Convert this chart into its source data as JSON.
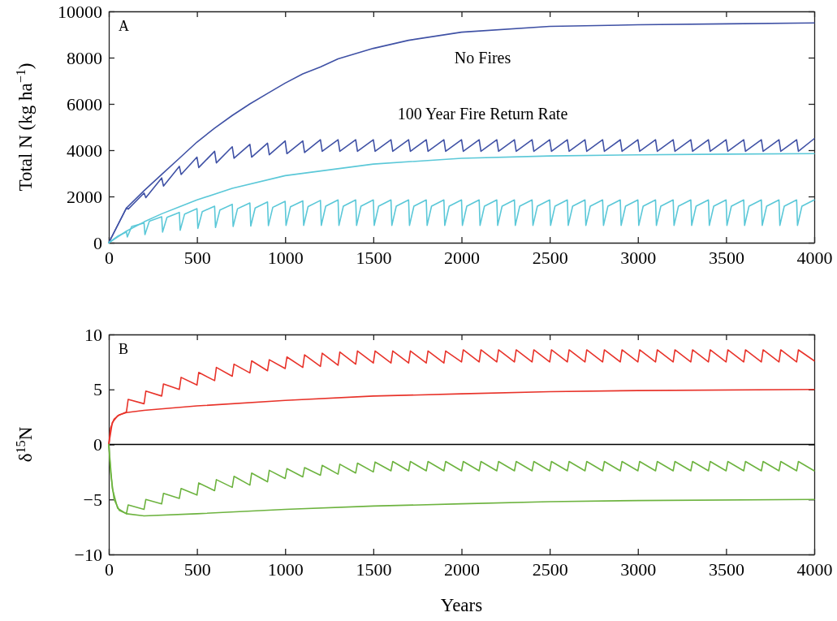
{
  "chart_data": [
    {
      "type": "line",
      "title": "A",
      "ylabel": "Total N (kg ha$^{−1}$)",
      "xlim": [
        0,
        4000
      ],
      "ylim": [
        0,
        10000
      ],
      "xticks": [
        0,
        500,
        1000,
        1500,
        2000,
        2500,
        3000,
        3500,
        4000
      ],
      "yticks": [
        0,
        2000,
        4000,
        6000,
        8000,
        10000
      ],
      "series": [
        {
          "name": "No Fires",
          "color": "#3f51a5",
          "x": [
            0,
            100,
            200,
            300,
            400,
            500,
            600,
            700,
            800,
            900,
            1000,
            1100,
            1200,
            1300,
            1500,
            1700,
            2000,
            2500,
            3000,
            3500,
            4000
          ],
          "values": [
            0,
            1500,
            2250,
            2950,
            3650,
            4350,
            4950,
            5500,
            6000,
            6450,
            6900,
            7300,
            7600,
            7950,
            8400,
            8750,
            9100,
            9350,
            9420,
            9460,
            9500
          ]
        },
        {
          "name": "100 Year Fire Return Rate",
          "color": "#3f51a5",
          "x": [
            0,
            100,
            110,
            200,
            210,
            300,
            310,
            400,
            410,
            500,
            510,
            600,
            610,
            700,
            710,
            800,
            810,
            900,
            910,
            1000,
            1010,
            1100,
            1110,
            1200,
            1210,
            1300,
            1310,
            1400,
            1410,
            1500,
            1510,
            1600,
            1610,
            1700,
            1710,
            1800,
            1810,
            1900,
            1910,
            2000,
            2010,
            2100,
            2110,
            2200,
            2210,
            2300,
            2310,
            2400,
            2410,
            2500,
            2510,
            2600,
            2610,
            2700,
            2710,
            2800,
            2810,
            2900,
            2910,
            3000,
            3010,
            3100,
            3110,
            3200,
            3210,
            3300,
            3310,
            3400,
            3410,
            3500,
            3510,
            3600,
            3610,
            3700,
            3710,
            3800,
            3810,
            3900,
            3910,
            4000
          ],
          "values": [
            0,
            1500,
            1450,
            2150,
            1950,
            2800,
            2450,
            3300,
            2950,
            3700,
            3250,
            3950,
            3450,
            4150,
            3650,
            4250,
            3700,
            4300,
            3800,
            4400,
            3850,
            4400,
            3900,
            4450,
            3950,
            4450,
            3950,
            4450,
            3950,
            4450,
            3950,
            4450,
            3950,
            4450,
            3950,
            4450,
            3950,
            4450,
            3950,
            4450,
            3950,
            4450,
            3950,
            4450,
            3950,
            4450,
            3950,
            4450,
            3950,
            4450,
            3950,
            4450,
            3950,
            4450,
            3950,
            4450,
            3950,
            4450,
            3950,
            4450,
            3950,
            4450,
            3950,
            4450,
            3950,
            4450,
            3950,
            4450,
            3950,
            4450,
            3950,
            4450,
            3950,
            4450,
            3950,
            4450,
            3950,
            4450,
            3950,
            4500
          ]
        },
        {
          "color": "#5bc8d8",
          "x": [
            0,
            100,
            200,
            300,
            500,
            700,
            1000,
            1500,
            2000,
            2500,
            3000,
            3500,
            4000
          ],
          "values": [
            0,
            500,
            900,
            1250,
            1850,
            2350,
            2900,
            3400,
            3650,
            3750,
            3800,
            3830,
            3850
          ]
        },
        {
          "color": "#5bc8d8",
          "x": [
            0,
            50,
            100,
            105,
            130,
            200,
            205,
            230,
            300,
            305,
            330,
            400,
            405,
            430,
            500,
            505,
            530,
            600,
            605,
            630,
            700,
            705,
            730,
            800,
            805,
            830,
            900,
            905,
            930,
            1000,
            1005,
            1030,
            1100,
            1105,
            1130,
            1200,
            1205,
            1230,
            1300,
            1305,
            1330,
            1400,
            1405,
            1430,
            1500,
            1505,
            1530,
            1600,
            1605,
            1630,
            1700,
            1705,
            1730,
            1800,
            1805,
            1830,
            1900,
            1905,
            1930,
            2000,
            2005,
            2030,
            2100,
            2105,
            2130,
            2200,
            2205,
            2230,
            2300,
            2305,
            2330,
            2400,
            2405,
            2430,
            2500,
            2505,
            2530,
            2600,
            2605,
            2630,
            2700,
            2705,
            2730,
            2800,
            2805,
            2830,
            2900,
            2905,
            2930,
            3000,
            3005,
            3030,
            3100,
            3105,
            3130,
            3200,
            3205,
            3230,
            3300,
            3305,
            3330,
            3400,
            3405,
            3430,
            3500,
            3505,
            3530,
            3600,
            3605,
            3630,
            3700,
            3705,
            3730,
            3800,
            3805,
            3830,
            3900,
            3905,
            3930,
            4000
          ],
          "values": [
            0,
            280,
            460,
            250,
            700,
            850,
            350,
            930,
            1120,
            460,
            1100,
            1310,
            540,
            1240,
            1470,
            620,
            1340,
            1580,
            660,
            1410,
            1660,
            700,
            1470,
            1720,
            720,
            1500,
            1760,
            740,
            1530,
            1790,
            750,
            1550,
            1810,
            750,
            1560,
            1830,
            750,
            1580,
            1850,
            750,
            1580,
            1850,
            750,
            1580,
            1850,
            750,
            1580,
            1850,
            750,
            1580,
            1850,
            750,
            1580,
            1850,
            750,
            1580,
            1850,
            750,
            1580,
            1850,
            750,
            1580,
            1850,
            750,
            1580,
            1850,
            750,
            1580,
            1850,
            750,
            1580,
            1850,
            750,
            1580,
            1850,
            750,
            1580,
            1850,
            750,
            1580,
            1850,
            750,
            1580,
            1850,
            750,
            1580,
            1850,
            750,
            1580,
            1850,
            750,
            1580,
            1850,
            750,
            1580,
            1850,
            750,
            1580,
            1850,
            750,
            1580,
            1850,
            750,
            1580,
            1850,
            750,
            1580,
            1850,
            750,
            1580,
            1850,
            750,
            1580,
            1850,
            750,
            1580,
            1850,
            750,
            1580,
            1850
          ]
        }
      ]
    },
    {
      "type": "line",
      "title": "B",
      "xlabel": "Years",
      "ylabel": "δ$^{15}$N",
      "xlim": [
        0,
        4000
      ],
      "ylim": [
        -10,
        10
      ],
      "xticks": [
        0,
        500,
        1000,
        1500,
        2000,
        2500,
        3000,
        3500,
        4000
      ],
      "yticks": [
        -10,
        -5,
        0,
        5,
        10
      ],
      "ref_lines": [
        {
          "axis": "y",
          "value": 0,
          "color": "#000000"
        }
      ],
      "series": [
        {
          "color": "#e8332a",
          "x": [
            0,
            10,
            30,
            60,
            100,
            200,
            500,
            1000,
            1500,
            2000,
            2500,
            3000,
            4000
          ],
          "values": [
            0,
            1.5,
            2.3,
            2.7,
            2.9,
            3.1,
            3.5,
            4.0,
            4.4,
            4.6,
            4.8,
            4.9,
            5.0
          ]
        },
        {
          "color": "#e8332a",
          "x": [
            0,
            20,
            50,
            100,
            110,
            200,
            210,
            300,
            310,
            400,
            410,
            500,
            510,
            600,
            610,
            700,
            710,
            800,
            810,
            900,
            910,
            1000,
            1010,
            1100,
            1110,
            1200,
            1210,
            1300,
            1310,
            1400,
            1410,
            1500,
            1510,
            1600,
            1610,
            1700,
            1710,
            1800,
            1810,
            1900,
            1910,
            2000,
            2010,
            2100,
            2110,
            2200,
            2210,
            2300,
            2310,
            2400,
            2410,
            2500,
            2510,
            2600,
            2610,
            2700,
            2710,
            2800,
            2810,
            2900,
            2910,
            3000,
            3010,
            3100,
            3110,
            3200,
            3210,
            3300,
            3310,
            3400,
            3410,
            3500,
            3510,
            3600,
            3610,
            3700,
            3710,
            3800,
            3810,
            3900,
            3910,
            4000
          ],
          "values": [
            0,
            2.0,
            2.6,
            2.95,
            4.1,
            3.7,
            4.85,
            4.4,
            5.5,
            5.0,
            6.1,
            5.4,
            6.55,
            5.8,
            7.0,
            6.2,
            7.3,
            6.5,
            7.6,
            6.7,
            7.7,
            6.9,
            7.95,
            7.0,
            8.15,
            7.1,
            8.3,
            7.2,
            8.4,
            7.3,
            8.5,
            7.4,
            8.5,
            7.4,
            8.5,
            7.4,
            8.5,
            7.4,
            8.5,
            7.4,
            8.5,
            7.5,
            8.6,
            7.5,
            8.6,
            7.5,
            8.6,
            7.5,
            8.6,
            7.5,
            8.6,
            7.5,
            8.6,
            7.5,
            8.6,
            7.5,
            8.6,
            7.5,
            8.6,
            7.5,
            8.6,
            7.5,
            8.6,
            7.5,
            8.6,
            7.5,
            8.6,
            7.5,
            8.6,
            7.5,
            8.6,
            7.5,
            8.6,
            7.5,
            8.6,
            7.5,
            8.6,
            7.5,
            8.6,
            7.5,
            8.6,
            7.6
          ]
        },
        {
          "color": "#6db33f",
          "x": [
            0,
            10,
            30,
            60,
            100,
            200,
            500,
            1000,
            1500,
            2000,
            2500,
            3000,
            4000
          ],
          "values": [
            0,
            -2.5,
            -5.0,
            -6.0,
            -6.3,
            -6.5,
            -6.3,
            -5.9,
            -5.6,
            -5.4,
            -5.2,
            -5.1,
            -5.0
          ]
        },
        {
          "color": "#6db33f",
          "x": [
            0,
            20,
            50,
            100,
            110,
            200,
            210,
            300,
            310,
            400,
            410,
            500,
            510,
            600,
            610,
            700,
            710,
            800,
            810,
            900,
            910,
            1000,
            1010,
            1100,
            1110,
            1200,
            1210,
            1300,
            1310,
            1400,
            1410,
            1500,
            1510,
            1600,
            1610,
            1700,
            1710,
            1800,
            1810,
            1900,
            1910,
            2000,
            2010,
            2100,
            2110,
            2200,
            2210,
            2300,
            2310,
            2400,
            2410,
            2500,
            2510,
            2600,
            2610,
            2700,
            2710,
            2800,
            2810,
            2900,
            2910,
            3000,
            3010,
            3100,
            3110,
            3200,
            3210,
            3300,
            3310,
            3400,
            3410,
            3500,
            3510,
            3600,
            3610,
            3700,
            3710,
            3800,
            3810,
            3900,
            3910,
            4000
          ],
          "values": [
            0,
            -4.0,
            -5.8,
            -6.3,
            -5.5,
            -5.9,
            -5.0,
            -5.4,
            -4.45,
            -4.9,
            -4.0,
            -4.6,
            -3.5,
            -4.2,
            -3.2,
            -3.9,
            -2.9,
            -3.7,
            -2.6,
            -3.4,
            -2.35,
            -3.1,
            -2.2,
            -2.95,
            -2.1,
            -2.8,
            -1.9,
            -2.7,
            -1.8,
            -2.6,
            -1.7,
            -2.5,
            -1.6,
            -2.4,
            -1.55,
            -2.4,
            -1.55,
            -2.4,
            -1.55,
            -2.4,
            -1.55,
            -2.4,
            -1.55,
            -2.4,
            -1.55,
            -2.4,
            -1.55,
            -2.4,
            -1.55,
            -2.4,
            -1.55,
            -2.4,
            -1.55,
            -2.4,
            -1.55,
            -2.4,
            -1.55,
            -2.4,
            -1.55,
            -2.4,
            -1.55,
            -2.4,
            -1.55,
            -2.4,
            -1.55,
            -2.4,
            -1.55,
            -2.4,
            -1.55,
            -2.4,
            -1.55,
            -2.4,
            -1.55,
            -2.4,
            -1.55,
            -2.4,
            -1.55,
            -2.4,
            -1.55,
            -2.4,
            -1.55,
            -2.4
          ]
        }
      ]
    }
  ]
}
